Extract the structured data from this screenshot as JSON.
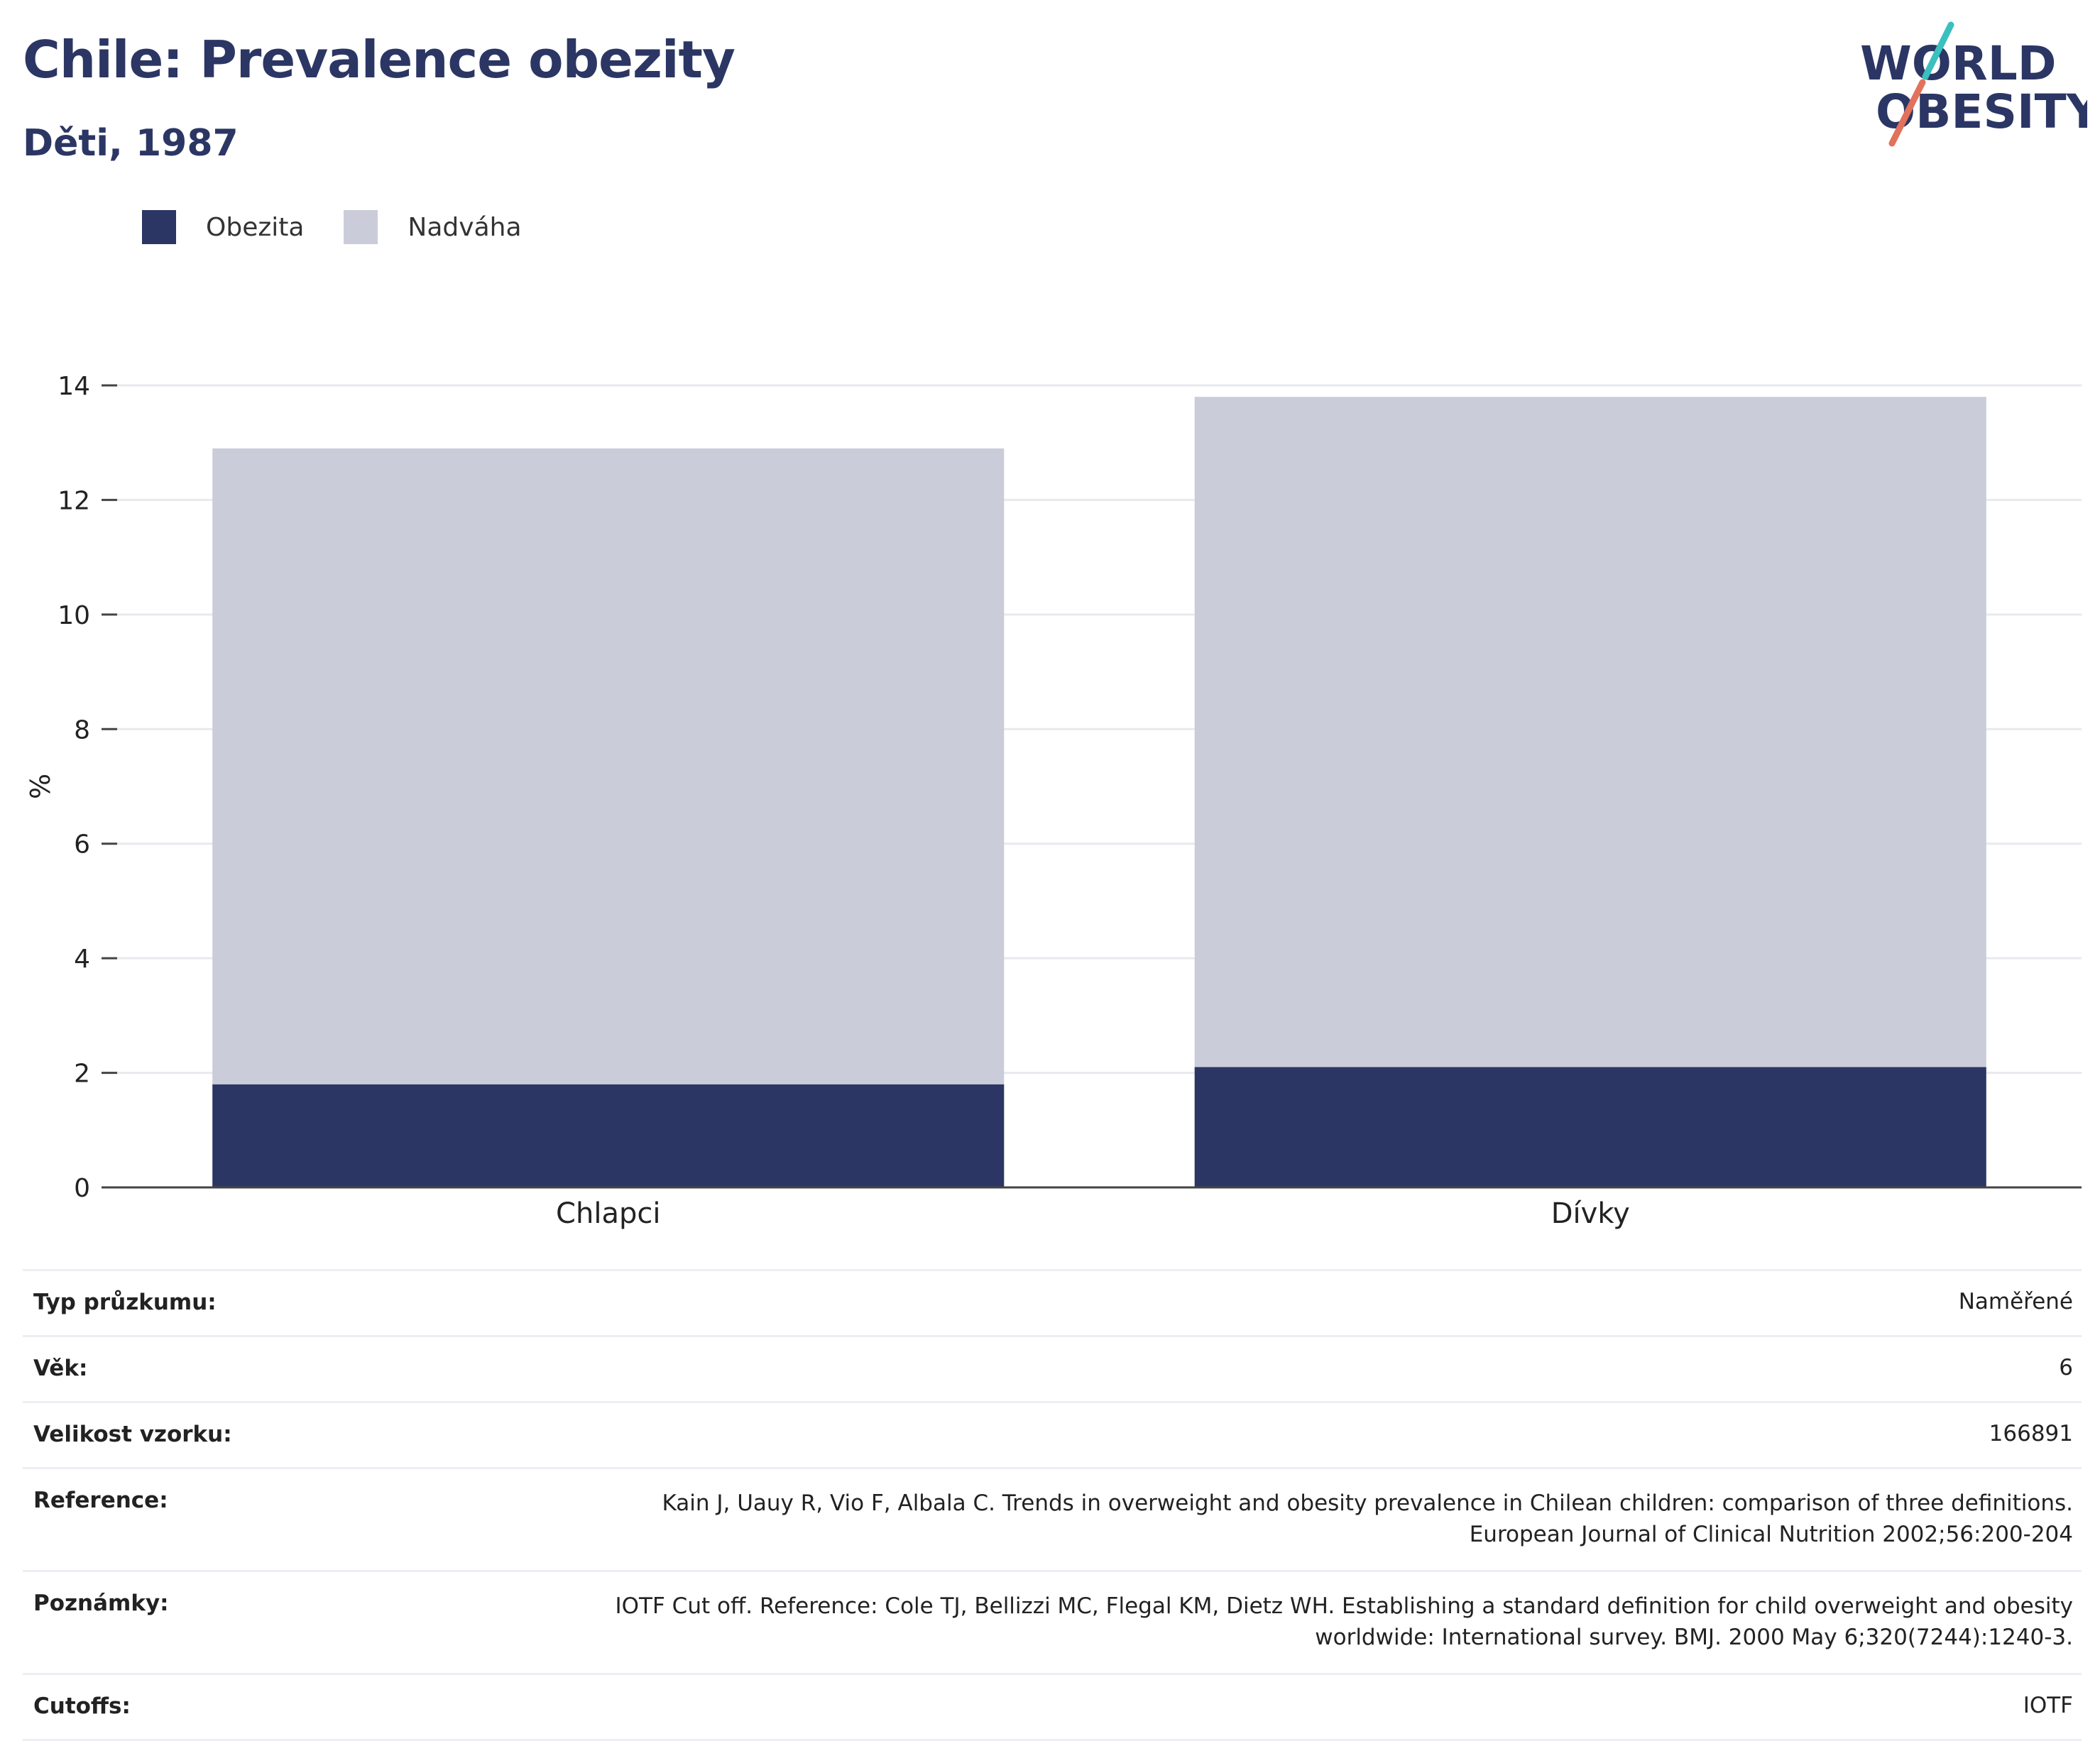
{
  "header": {
    "title": "Chile: Prevalence obezity",
    "subtitle": "Děti, 1987"
  },
  "logo": {
    "line1": "WORLD",
    "line2": "OBESITY",
    "colors": {
      "navy": "#2b3664",
      "teal": "#3bbfbf",
      "coral": "#e2725b"
    }
  },
  "legend": [
    {
      "label": "Obezita",
      "color": "#2b3664"
    },
    {
      "label": "Nadváha",
      "color": "#cacdd9"
    }
  ],
  "chart_data": {
    "type": "bar",
    "stacked": true,
    "categories": [
      "Chlapci",
      "Dívky"
    ],
    "series": [
      {
        "name": "Obezita",
        "values": [
          1.8,
          2.1
        ],
        "color": "#2b3664"
      },
      {
        "name": "Nadváha",
        "values": [
          11.1,
          11.7
        ],
        "color": "#cacdd9"
      }
    ],
    "ylabel": "%",
    "xlabel": "",
    "ylim": [
      0,
      14
    ],
    "yticks": [
      0,
      2,
      4,
      6,
      8,
      10,
      12,
      14
    ],
    "grid": true,
    "legend_position": "top-left"
  },
  "info": [
    {
      "label": "Typ průzkumu:",
      "value": "Naměřené"
    },
    {
      "label": "Věk:",
      "value": "6"
    },
    {
      "label": "Velikost vzorku:",
      "value": "166891"
    },
    {
      "label": "Reference:",
      "value": "Kain J, Uauy R, Vio F, Albala C. Trends in overweight and obesity prevalence in Chilean children: comparison of three definitions. European Journal of Clinical Nutrition 2002;56:200-204"
    },
    {
      "label": "Poznámky:",
      "value": "IOTF Cut off. Reference: Cole TJ, Bellizzi MC, Flegal KM, Dietz WH. Establishing a standard definition for child overweight and obesity worldwide: International survey. BMJ. 2000 May 6;320(7244):1240-3."
    },
    {
      "label": "Cutoffs:",
      "value": "IOTF"
    }
  ]
}
